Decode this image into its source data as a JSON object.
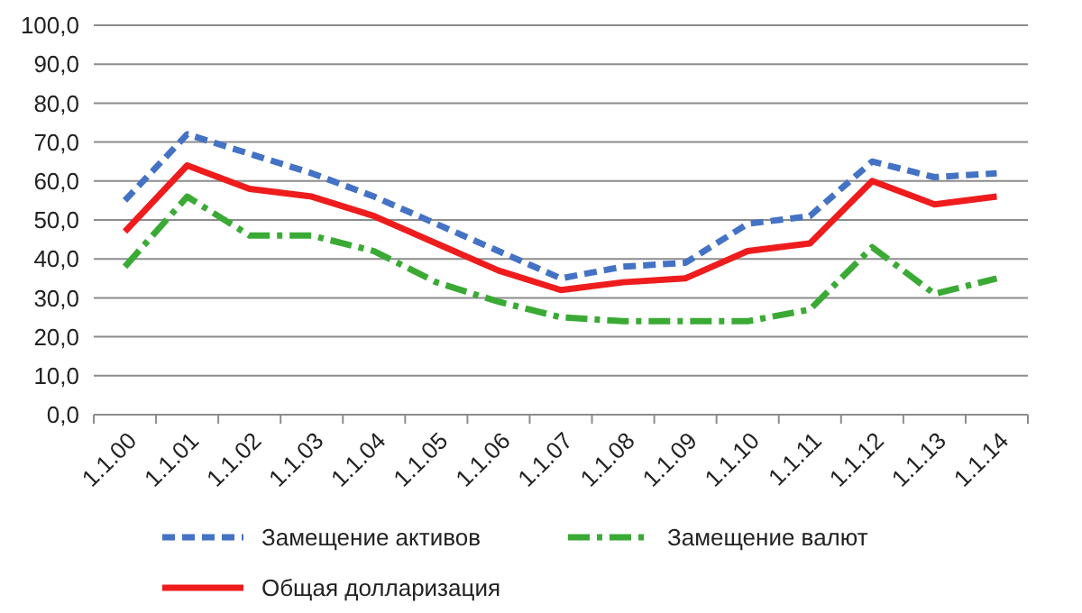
{
  "chart_data": {
    "type": "line",
    "categories": [
      "1.1.00",
      "1.1.01",
      "1.1.02",
      "1.1.03",
      "1.1.04",
      "1.1.05",
      "1.1.06",
      "1.1.07",
      "1.1.08",
      "1.1.09",
      "1.1.10",
      "1.1.11",
      "1.1.12",
      "1.1.13",
      "1.1.14"
    ],
    "series": [
      {
        "name": "Замещение активов",
        "color": "#4472c4",
        "line_style": "dashed",
        "values": [
          55,
          72,
          67,
          62,
          56,
          49,
          42,
          35,
          38,
          39,
          49,
          51,
          65,
          61,
          62
        ]
      },
      {
        "name": "Замещение валют",
        "color": "#3aaa35",
        "line_style": "dashdot",
        "values": [
          38,
          56,
          46,
          46,
          42,
          34,
          29,
          25,
          24,
          24,
          24,
          27,
          43,
          31,
          35
        ]
      },
      {
        "name": "Общая долларизация",
        "color": "#ee1c1c",
        "line_style": "solid",
        "values": [
          47,
          64,
          58,
          56,
          51,
          44,
          37,
          32,
          34,
          35,
          42,
          44,
          60,
          54,
          56
        ]
      }
    ],
    "ylim": [
      0,
      100
    ],
    "yticks": [
      {
        "value": 0,
        "label": "0,0"
      },
      {
        "value": 10,
        "label": "10,0"
      },
      {
        "value": 20,
        "label": "20,0"
      },
      {
        "value": 30,
        "label": "30,0"
      },
      {
        "value": 40,
        "label": "40,0"
      },
      {
        "value": 50,
        "label": "50,0"
      },
      {
        "value": 60,
        "label": "60,0"
      },
      {
        "value": 70,
        "label": "70,0"
      },
      {
        "value": 80,
        "label": "80,0"
      },
      {
        "value": 90,
        "label": "90,0"
      },
      {
        "value": 100,
        "label": "100,0"
      }
    ],
    "grid": "y",
    "legend": "bottom",
    "marker": "none"
  }
}
